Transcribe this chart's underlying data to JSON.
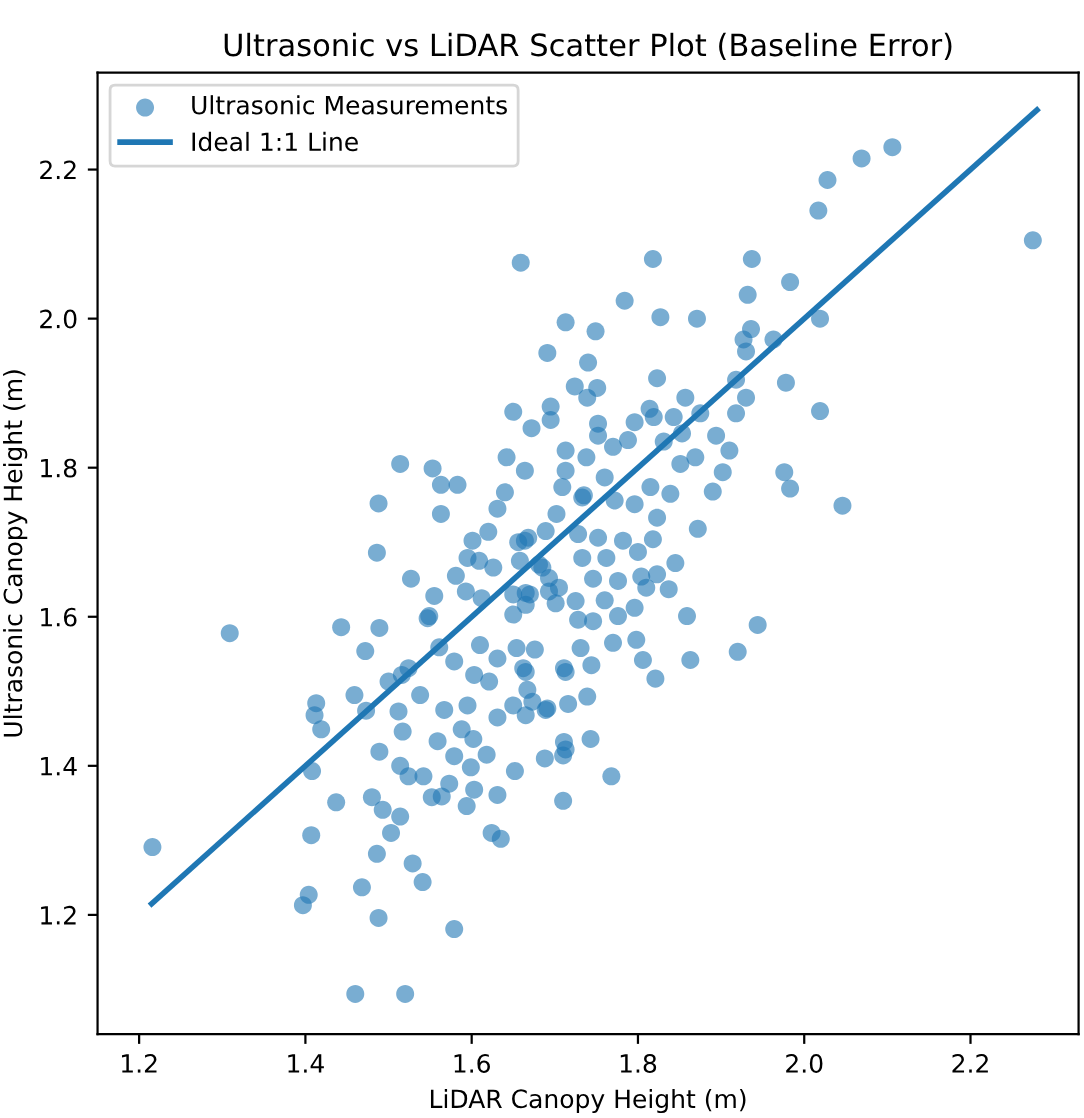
{
  "chart_data": {
    "type": "scatter",
    "title": "Ultrasonic vs LiDAR Scatter Plot (Baseline Error)",
    "xlabel": "LiDAR Canopy Height (m)",
    "ylabel": "Ultrasonic Canopy Height (m)",
    "xlim": [
      1.15,
      2.33
    ],
    "ylim": [
      1.04,
      2.33
    ],
    "xticks": [
      1.2,
      1.4,
      1.6,
      1.8,
      {
        "value": 2.0,
        "label": "2.0"
      },
      2.2
    ],
    "yticks": [
      1.2,
      1.4,
      1.6,
      1.8,
      {
        "value": 2.0,
        "label": "2.0"
      },
      2.2
    ],
    "grid": false,
    "legend": "top left",
    "series": [
      {
        "name": "Ultrasonic Measurements",
        "marker": "circle",
        "color": "#1f77b4",
        "x": [
          1.216,
          1.309,
          1.443,
          1.489,
          1.472,
          1.459,
          1.413,
          1.411,
          1.419,
          1.408,
          1.473,
          1.5,
          1.516,
          1.524,
          1.538,
          1.512,
          1.517,
          1.489,
          1.514,
          1.524,
          1.542,
          1.437,
          1.48,
          1.493,
          1.514,
          1.503,
          1.407,
          1.486,
          1.529,
          1.541,
          1.468,
          1.404,
          1.397,
          1.488,
          1.579,
          1.46,
          1.52,
          1.552,
          1.573,
          1.564,
          1.594,
          1.603,
          1.599,
          1.579,
          1.618,
          1.624,
          1.635,
          1.631,
          1.652,
          1.688,
          1.71,
          1.559,
          1.588,
          1.602,
          1.595,
          1.567,
          1.603,
          1.579,
          1.631,
          1.65,
          1.673,
          1.689,
          1.621,
          1.631,
          1.61,
          1.654,
          1.676,
          1.662,
          1.561,
          1.547,
          1.65,
          1.713,
          1.713,
          1.659,
          1.713,
          1.691,
          1.695,
          1.65,
          1.672,
          1.514,
          1.553,
          1.563,
          1.583,
          1.563,
          1.488,
          1.486,
          1.527,
          1.555,
          1.549,
          1.642,
          1.664,
          1.64,
          1.631,
          1.62,
          1.601,
          1.656,
          1.668,
          1.689,
          1.702,
          1.713,
          1.713,
          1.581,
          1.609,
          1.626,
          1.593,
          1.612,
          1.65,
          1.67,
          1.681,
          1.693,
          1.705,
          1.595,
          2.106,
          2.069,
          2.028,
          2.017,
          2.275,
          1.818,
          1.937,
          1.932,
          1.983,
          1.784,
          1.749,
          1.827,
          1.871,
          2.019,
          1.936,
          1.927,
          1.93,
          1.963,
          1.74,
          1.724,
          1.751,
          1.739,
          1.823,
          1.857,
          1.918,
          1.978,
          1.93,
          1.918,
          2.019,
          1.814,
          1.819,
          1.843,
          1.875,
          1.796,
          1.695,
          1.752,
          1.752,
          1.788,
          1.77,
          1.738,
          1.831,
          1.853,
          1.894,
          1.91,
          1.869,
          1.851,
          1.902,
          1.976,
          1.983,
          2.046,
          1.89,
          1.815,
          1.839,
          1.796,
          1.772,
          1.735,
          1.872,
          1.845,
          1.837,
          1.859,
          1.944,
          1.92,
          1.863,
          1.821,
          1.806,
          1.798,
          1.77,
          1.744,
          1.739,
          1.716,
          1.691,
          1.665,
          1.743,
          1.711,
          1.71,
          1.768,
          1.731,
          1.711,
          1.665,
          1.667,
          1.776,
          1.796,
          1.746,
          1.728,
          1.76,
          1.725,
          1.701,
          1.665,
          1.746,
          1.776,
          1.804,
          1.81,
          1.823,
          1.8,
          1.762,
          1.733,
          1.782,
          1.818,
          1.823,
          1.752,
          1.728,
          1.733,
          1.709,
          1.76,
          1.664,
          1.658,
          1.685,
          1.693,
          1.665
        ],
        "values": [
          1.291,
          1.578,
          1.586,
          1.585,
          1.554,
          1.495,
          1.484,
          1.468,
          1.449,
          1.393,
          1.474,
          1.513,
          1.522,
          1.531,
          1.495,
          1.473,
          1.446,
          1.419,
          1.4,
          1.386,
          1.386,
          1.351,
          1.358,
          1.341,
          1.332,
          1.31,
          1.307,
          1.282,
          1.269,
          1.244,
          1.237,
          1.227,
          1.213,
          1.196,
          1.181,
          1.094,
          1.094,
          1.358,
          1.376,
          1.359,
          1.346,
          1.368,
          1.398,
          1.413,
          1.415,
          1.31,
          1.302,
          1.361,
          1.393,
          1.41,
          1.353,
          1.433,
          1.449,
          1.436,
          1.481,
          1.475,
          1.522,
          1.54,
          1.465,
          1.481,
          1.486,
          1.475,
          1.513,
          1.544,
          1.562,
          1.558,
          1.556,
          1.531,
          1.559,
          1.598,
          1.603,
          1.526,
          1.422,
          2.075,
          1.995,
          1.954,
          1.882,
          1.875,
          1.853,
          1.805,
          1.799,
          1.777,
          1.777,
          1.738,
          1.752,
          1.686,
          1.651,
          1.628,
          1.601,
          1.814,
          1.796,
          1.767,
          1.745,
          1.714,
          1.702,
          1.7,
          1.706,
          1.715,
          1.738,
          1.823,
          1.796,
          1.655,
          1.675,
          1.666,
          1.634,
          1.625,
          1.63,
          1.63,
          1.67,
          1.652,
          1.639,
          1.679,
          2.23,
          2.215,
          2.186,
          2.145,
          2.105,
          2.08,
          2.08,
          2.032,
          2.049,
          2.024,
          1.983,
          2.002,
          2.0,
          2.0,
          1.986,
          1.972,
          1.956,
          1.972,
          1.941,
          1.909,
          1.907,
          1.894,
          1.92,
          1.894,
          1.918,
          1.914,
          1.894,
          1.873,
          1.876,
          1.879,
          1.868,
          1.868,
          1.873,
          1.861,
          1.864,
          1.859,
          1.843,
          1.837,
          1.828,
          1.814,
          1.835,
          1.846,
          1.843,
          1.823,
          1.814,
          1.805,
          1.794,
          1.794,
          1.772,
          1.749,
          1.768,
          1.774,
          1.765,
          1.751,
          1.756,
          1.763,
          1.718,
          1.672,
          1.637,
          1.601,
          1.589,
          1.553,
          1.542,
          1.517,
          1.542,
          1.569,
          1.565,
          1.535,
          1.493,
          1.483,
          1.477,
          1.468,
          1.436,
          1.432,
          1.414,
          1.386,
          1.558,
          1.531,
          1.526,
          1.502,
          1.601,
          1.612,
          1.594,
          1.596,
          1.622,
          1.621,
          1.618,
          1.616,
          1.651,
          1.648,
          1.654,
          1.639,
          1.657,
          1.687,
          1.679,
          1.679,
          1.702,
          1.704,
          1.733,
          1.706,
          1.711,
          1.76,
          1.774,
          1.787,
          1.702,
          1.675,
          1.666,
          1.634,
          1.632
        ]
      },
      {
        "name": "Ideal 1:1 Line",
        "type": "line",
        "color": "#1f77b4",
        "x": [
          1.215,
          2.28
        ],
        "values": [
          1.215,
          2.28
        ]
      }
    ]
  }
}
